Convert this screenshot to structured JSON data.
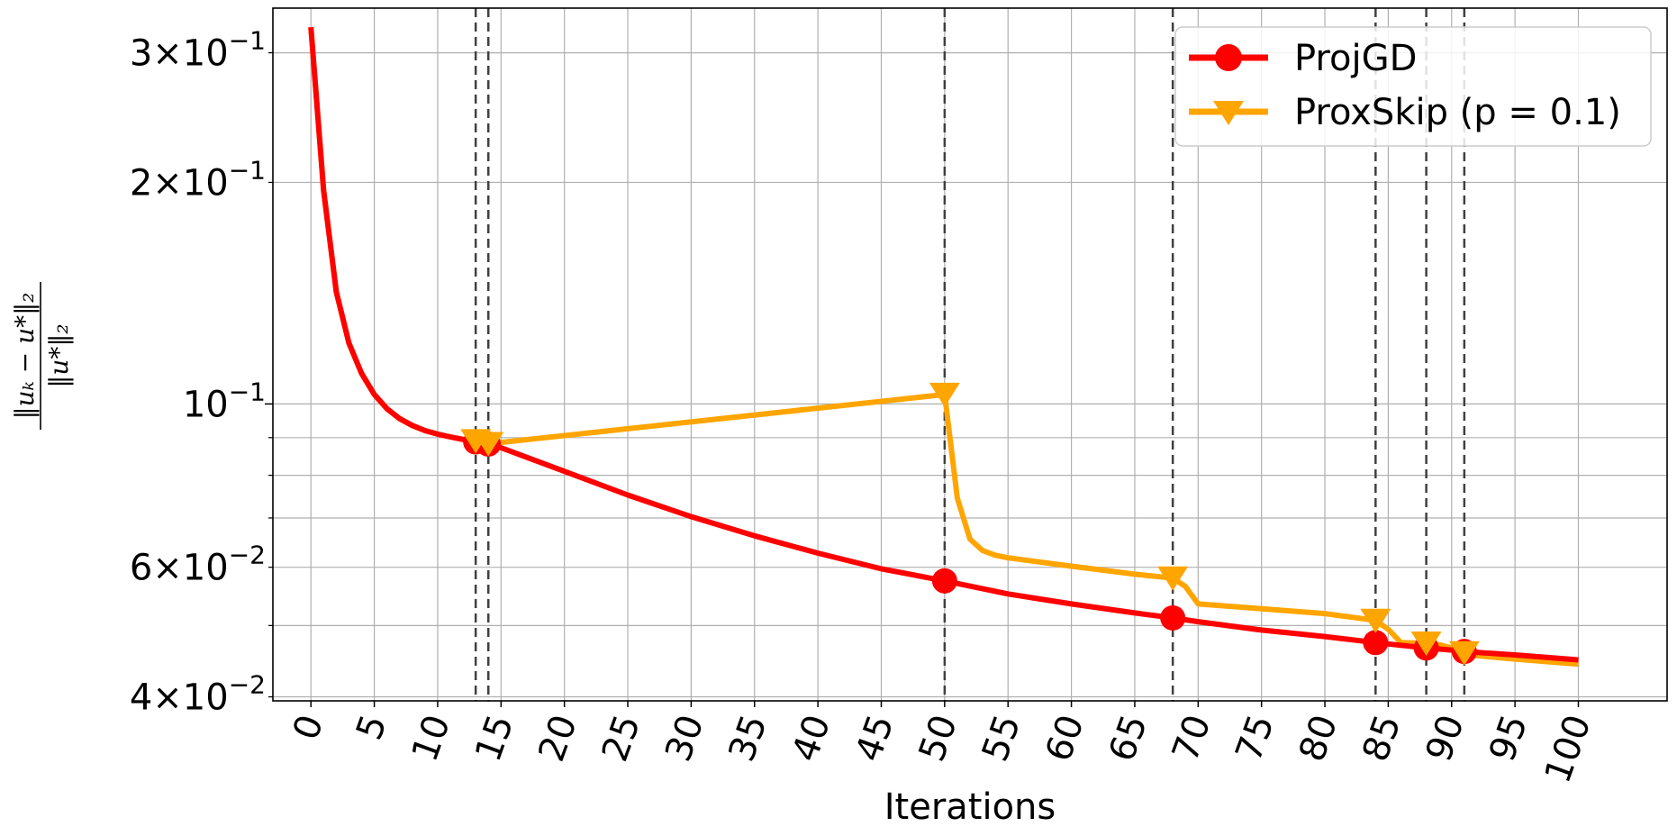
{
  "colors": {
    "projgd": "#ff0000",
    "proxskip": "#ffa500",
    "grid": "#b0b0b0",
    "vline": "#404040"
  },
  "chart_data": {
    "type": "line",
    "xlabel": "Iterations",
    "ylabel": "‖u_k − u*‖₂ / ‖u*‖₂",
    "ylabel_parts": {
      "numerator": "‖uₖ − u*‖₂",
      "denominator": "‖u*‖₂"
    },
    "xlim": [
      -3,
      107
    ],
    "ylim": [
      0.0395,
      0.345
    ],
    "yscale": "log",
    "grid": true,
    "legend_position": "top-right",
    "x_ticks": [
      0,
      5,
      10,
      15,
      20,
      25,
      30,
      35,
      40,
      45,
      50,
      55,
      60,
      65,
      70,
      75,
      80,
      85,
      90,
      95,
      100
    ],
    "x_tick_labels": [
      "0",
      "5",
      "10",
      "15",
      "20",
      "25",
      "30",
      "35",
      "40",
      "45",
      "50",
      "55",
      "60",
      "65",
      "70",
      "75",
      "80",
      "85",
      "90",
      "95",
      "100"
    ],
    "y_major_ticks": [
      0.1
    ],
    "y_major_tick_labels": [
      {
        "base": "10",
        "exp": "−1"
      }
    ],
    "y_minor_ticks": [
      0.04,
      0.05,
      0.06,
      0.07,
      0.08,
      0.09,
      0.2,
      0.3
    ],
    "y_minor_tick_labels": [
      {
        "value": 0.04,
        "mant": "4",
        "base": "10",
        "exp": "−2"
      },
      {
        "value": 0.06,
        "mant": "6",
        "base": "10",
        "exp": "−2"
      },
      {
        "value": 0.2,
        "mant": "2",
        "base": "10",
        "exp": "−1"
      },
      {
        "value": 0.3,
        "mant": "3",
        "base": "10",
        "exp": "−1"
      }
    ],
    "times_sign": "×",
    "vertical_lines": [
      13,
      14,
      50,
      68,
      84,
      88,
      91
    ],
    "series": [
      {
        "name": "ProjGD",
        "color": "#ff0000",
        "marker": "circle",
        "x": [
          0,
          1,
          2,
          3,
          4,
          5,
          6,
          7,
          8,
          9,
          10,
          11,
          12,
          13,
          14,
          15,
          20,
          25,
          30,
          35,
          40,
          45,
          50,
          55,
          60,
          65,
          68,
          70,
          75,
          80,
          84,
          85,
          88,
          90,
          91,
          95,
          100
        ],
        "y": [
          0.325,
          0.195,
          0.142,
          0.121,
          0.11,
          0.103,
          0.0985,
          0.0955,
          0.0935,
          0.092,
          0.091,
          0.0902,
          0.0895,
          0.0888,
          0.0882,
          0.0872,
          0.081,
          0.0752,
          0.0703,
          0.0662,
          0.0627,
          0.0597,
          0.0575,
          0.0552,
          0.0535,
          0.052,
          0.0512,
          0.0506,
          0.0493,
          0.0483,
          0.0474,
          0.0472,
          0.0466,
          0.0463,
          0.0461,
          0.0456,
          0.0449
        ],
        "marker_x": [
          13,
          14,
          50,
          68,
          84,
          88,
          91
        ]
      },
      {
        "name": "ProxSkip (p = 0.1)",
        "color": "#ffa500",
        "marker": "triangle-down",
        "x": [
          0,
          1,
          2,
          3,
          4,
          5,
          6,
          7,
          8,
          9,
          10,
          11,
          12,
          13,
          14,
          50,
          51,
          52,
          53,
          54,
          55,
          60,
          65,
          68,
          69,
          70,
          75,
          80,
          84,
          85,
          86,
          88,
          89,
          90,
          91,
          92,
          95,
          100
        ],
        "y": [
          0.325,
          0.195,
          0.142,
          0.121,
          0.11,
          0.103,
          0.0985,
          0.0955,
          0.0935,
          0.092,
          0.091,
          0.0902,
          0.0895,
          0.0891,
          0.0883,
          0.103,
          0.0745,
          0.0655,
          0.0632,
          0.0623,
          0.0618,
          0.0602,
          0.0587,
          0.058,
          0.0565,
          0.0535,
          0.0527,
          0.0519,
          0.0508,
          0.0494,
          0.0474,
          0.0473,
          0.0471,
          0.0466,
          0.0459,
          0.0455,
          0.045,
          0.0443
        ],
        "marker_x": [
          13,
          14,
          50,
          68,
          84,
          88,
          91
        ]
      }
    ]
  }
}
